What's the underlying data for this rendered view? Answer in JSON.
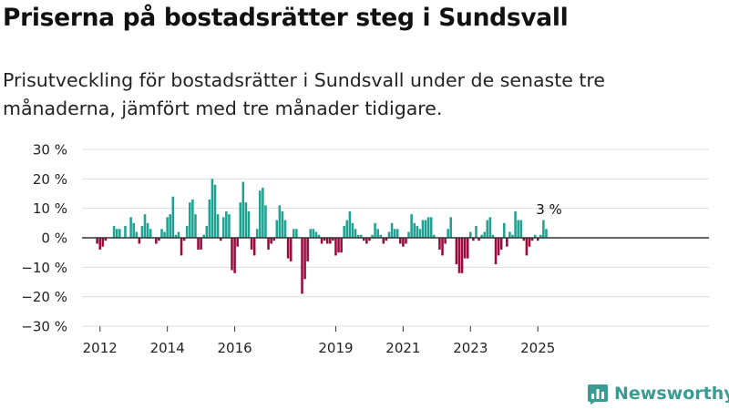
{
  "title": "Priserna på bostadsrätter steg i Sundsvall",
  "subtitle": "Prisutveckling för bostadsrätter i Sundsvall under de senaste tre månaderna, jämfört med tre månader tidigare.",
  "logo": {
    "text": "Newsworthy",
    "icon": "newsworthy-bar-logo-icon"
  },
  "colors": {
    "positive": "#1ea393",
    "negative": "#9a0a3d",
    "grid": "#dddddd",
    "baseline": "#333333",
    "logo": "#3a9b93"
  },
  "chart_data": {
    "type": "bar",
    "xlabel": "",
    "ylabel": "",
    "ylim": [
      -30,
      30
    ],
    "y_ticks": [
      30,
      20,
      10,
      0,
      -10,
      -20,
      -30
    ],
    "y_tick_labels": [
      "30 %",
      "20 %",
      "10 %",
      "0 %",
      "−10 %",
      "−20 %",
      "−30 %"
    ],
    "x_tick_labels": [
      {
        "label": "2012",
        "date": "2012-01"
      },
      {
        "label": "2014",
        "date": "2014-01"
      },
      {
        "label": "2016",
        "date": "2016-01"
      },
      {
        "label": "2019",
        "date": "2019-01"
      },
      {
        "label": "2021",
        "date": "2021-01"
      },
      {
        "label": "2023",
        "date": "2023-01"
      },
      {
        "label": "2025",
        "date": "2025-01"
      }
    ],
    "start": "2011-10",
    "grid": true,
    "annotation": {
      "text": "3 %",
      "date": "2025-05"
    },
    "values": [
      0,
      0,
      -2,
      -4,
      -3,
      -1,
      0,
      0,
      4,
      3,
      3,
      0,
      4,
      0,
      7,
      5,
      2,
      -2,
      4,
      8,
      5,
      3,
      0,
      -2,
      -1,
      3,
      2,
      7,
      8,
      14,
      1,
      2,
      -6,
      -1,
      4,
      12,
      13,
      8,
      -4,
      -4,
      1,
      4,
      13,
      20,
      18,
      8,
      -1,
      7,
      9,
      8,
      -11,
      -12,
      -3,
      12,
      19,
      12,
      9,
      -4,
      -6,
      3,
      16,
      17,
      11,
      -4,
      -2,
      -1,
      6,
      11,
      9,
      6,
      -7,
      -8,
      3,
      3,
      0,
      -19,
      -14,
      -8,
      3,
      3,
      2,
      1,
      -2,
      -1,
      -2,
      -2,
      -1,
      -6,
      -5,
      -5,
      4,
      6,
      9,
      5,
      3,
      1,
      1,
      -1,
      -2,
      -1,
      1,
      5,
      3,
      1,
      -2,
      -1,
      2,
      5,
      3,
      3,
      -2,
      -3,
      -2,
      2,
      8,
      5,
      4,
      3,
      6,
      6,
      7,
      7,
      1,
      0,
      -4,
      -6,
      -2,
      3,
      7,
      0,
      -9,
      -12,
      -12,
      -7,
      -7,
      2,
      -1,
      4,
      -1,
      1,
      2,
      6,
      7,
      1,
      -9,
      -6,
      -4,
      5,
      -3,
      2,
      1,
      9,
      6,
      6,
      -1,
      -6,
      -3,
      -1,
      1,
      -1,
      1,
      6,
      3
    ]
  }
}
